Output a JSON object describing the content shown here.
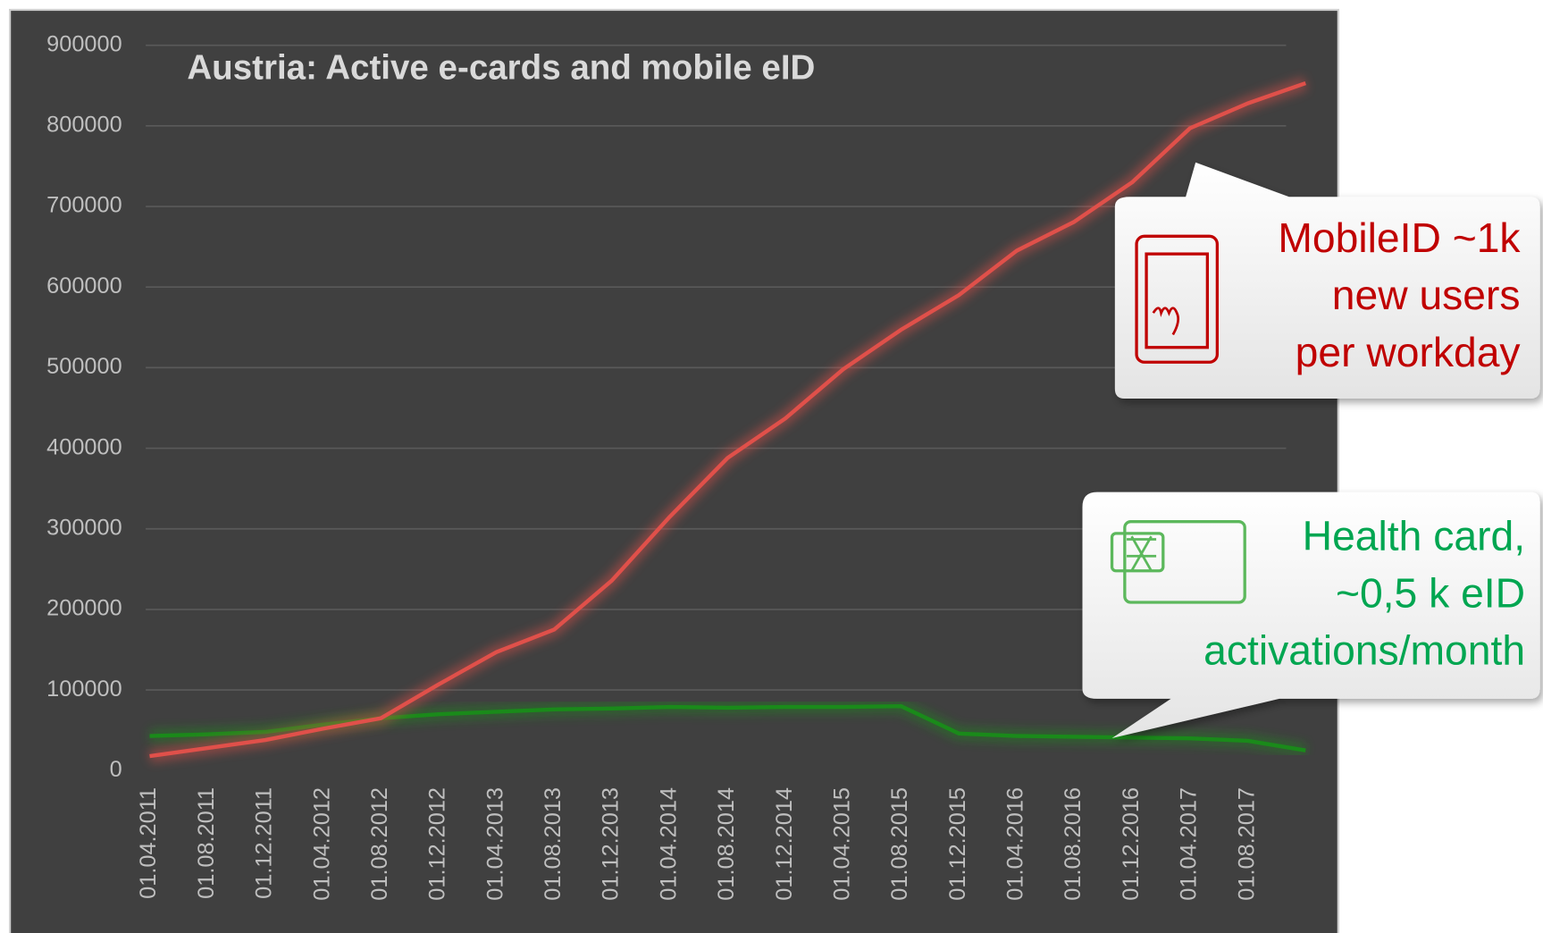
{
  "chart_data": {
    "type": "line",
    "title": "Austria: Active e-cards and mobile eID",
    "categories": [
      "01.04.2011",
      "01.08.2011",
      "01.12.2011",
      "01.04.2012",
      "01.08.2012",
      "01.12.2012",
      "01.04.2013",
      "01.08.2013",
      "01.12.2013",
      "01.04.2014",
      "01.08.2014",
      "01.12.2014",
      "01.04.2015",
      "01.08.2015",
      "01.12.2015",
      "01.04.2016",
      "01.08.2016",
      "01.12.2016",
      "01.04.2017",
      "01.08.2017",
      null
    ],
    "series": [
      {
        "color": "#e0504a",
        "values": [
          18000,
          28000,
          38000,
          52000,
          65000,
          107000,
          147000,
          175000,
          236000,
          315000,
          388000,
          437000,
          498000,
          547000,
          590000,
          645000,
          681000,
          730000,
          797000,
          828000,
          853000
        ]
      },
      {
        "color": "#1a8a1a",
        "values": [
          43000,
          45000,
          48000,
          57000,
          65000,
          70000,
          73000,
          76000,
          77000,
          79000,
          78000,
          79000,
          79000,
          80000,
          46000,
          43000,
          42000,
          41000,
          40000,
          37000,
          25000
        ]
      }
    ],
    "ylim": [
      0,
      900000
    ],
    "yticks": [
      0,
      100000,
      200000,
      300000,
      400000,
      500000,
      600000,
      700000,
      800000,
      900000
    ],
    "grid": true,
    "annotations": [
      {
        "color": "#c00000",
        "lines": [
          "MobileID ~1k",
          "new users",
          "per workday"
        ]
      },
      {
        "color": "#00a651",
        "lines": [
          "Health card,",
          "~0,5 k eID",
          "activations/month"
        ]
      }
    ]
  }
}
